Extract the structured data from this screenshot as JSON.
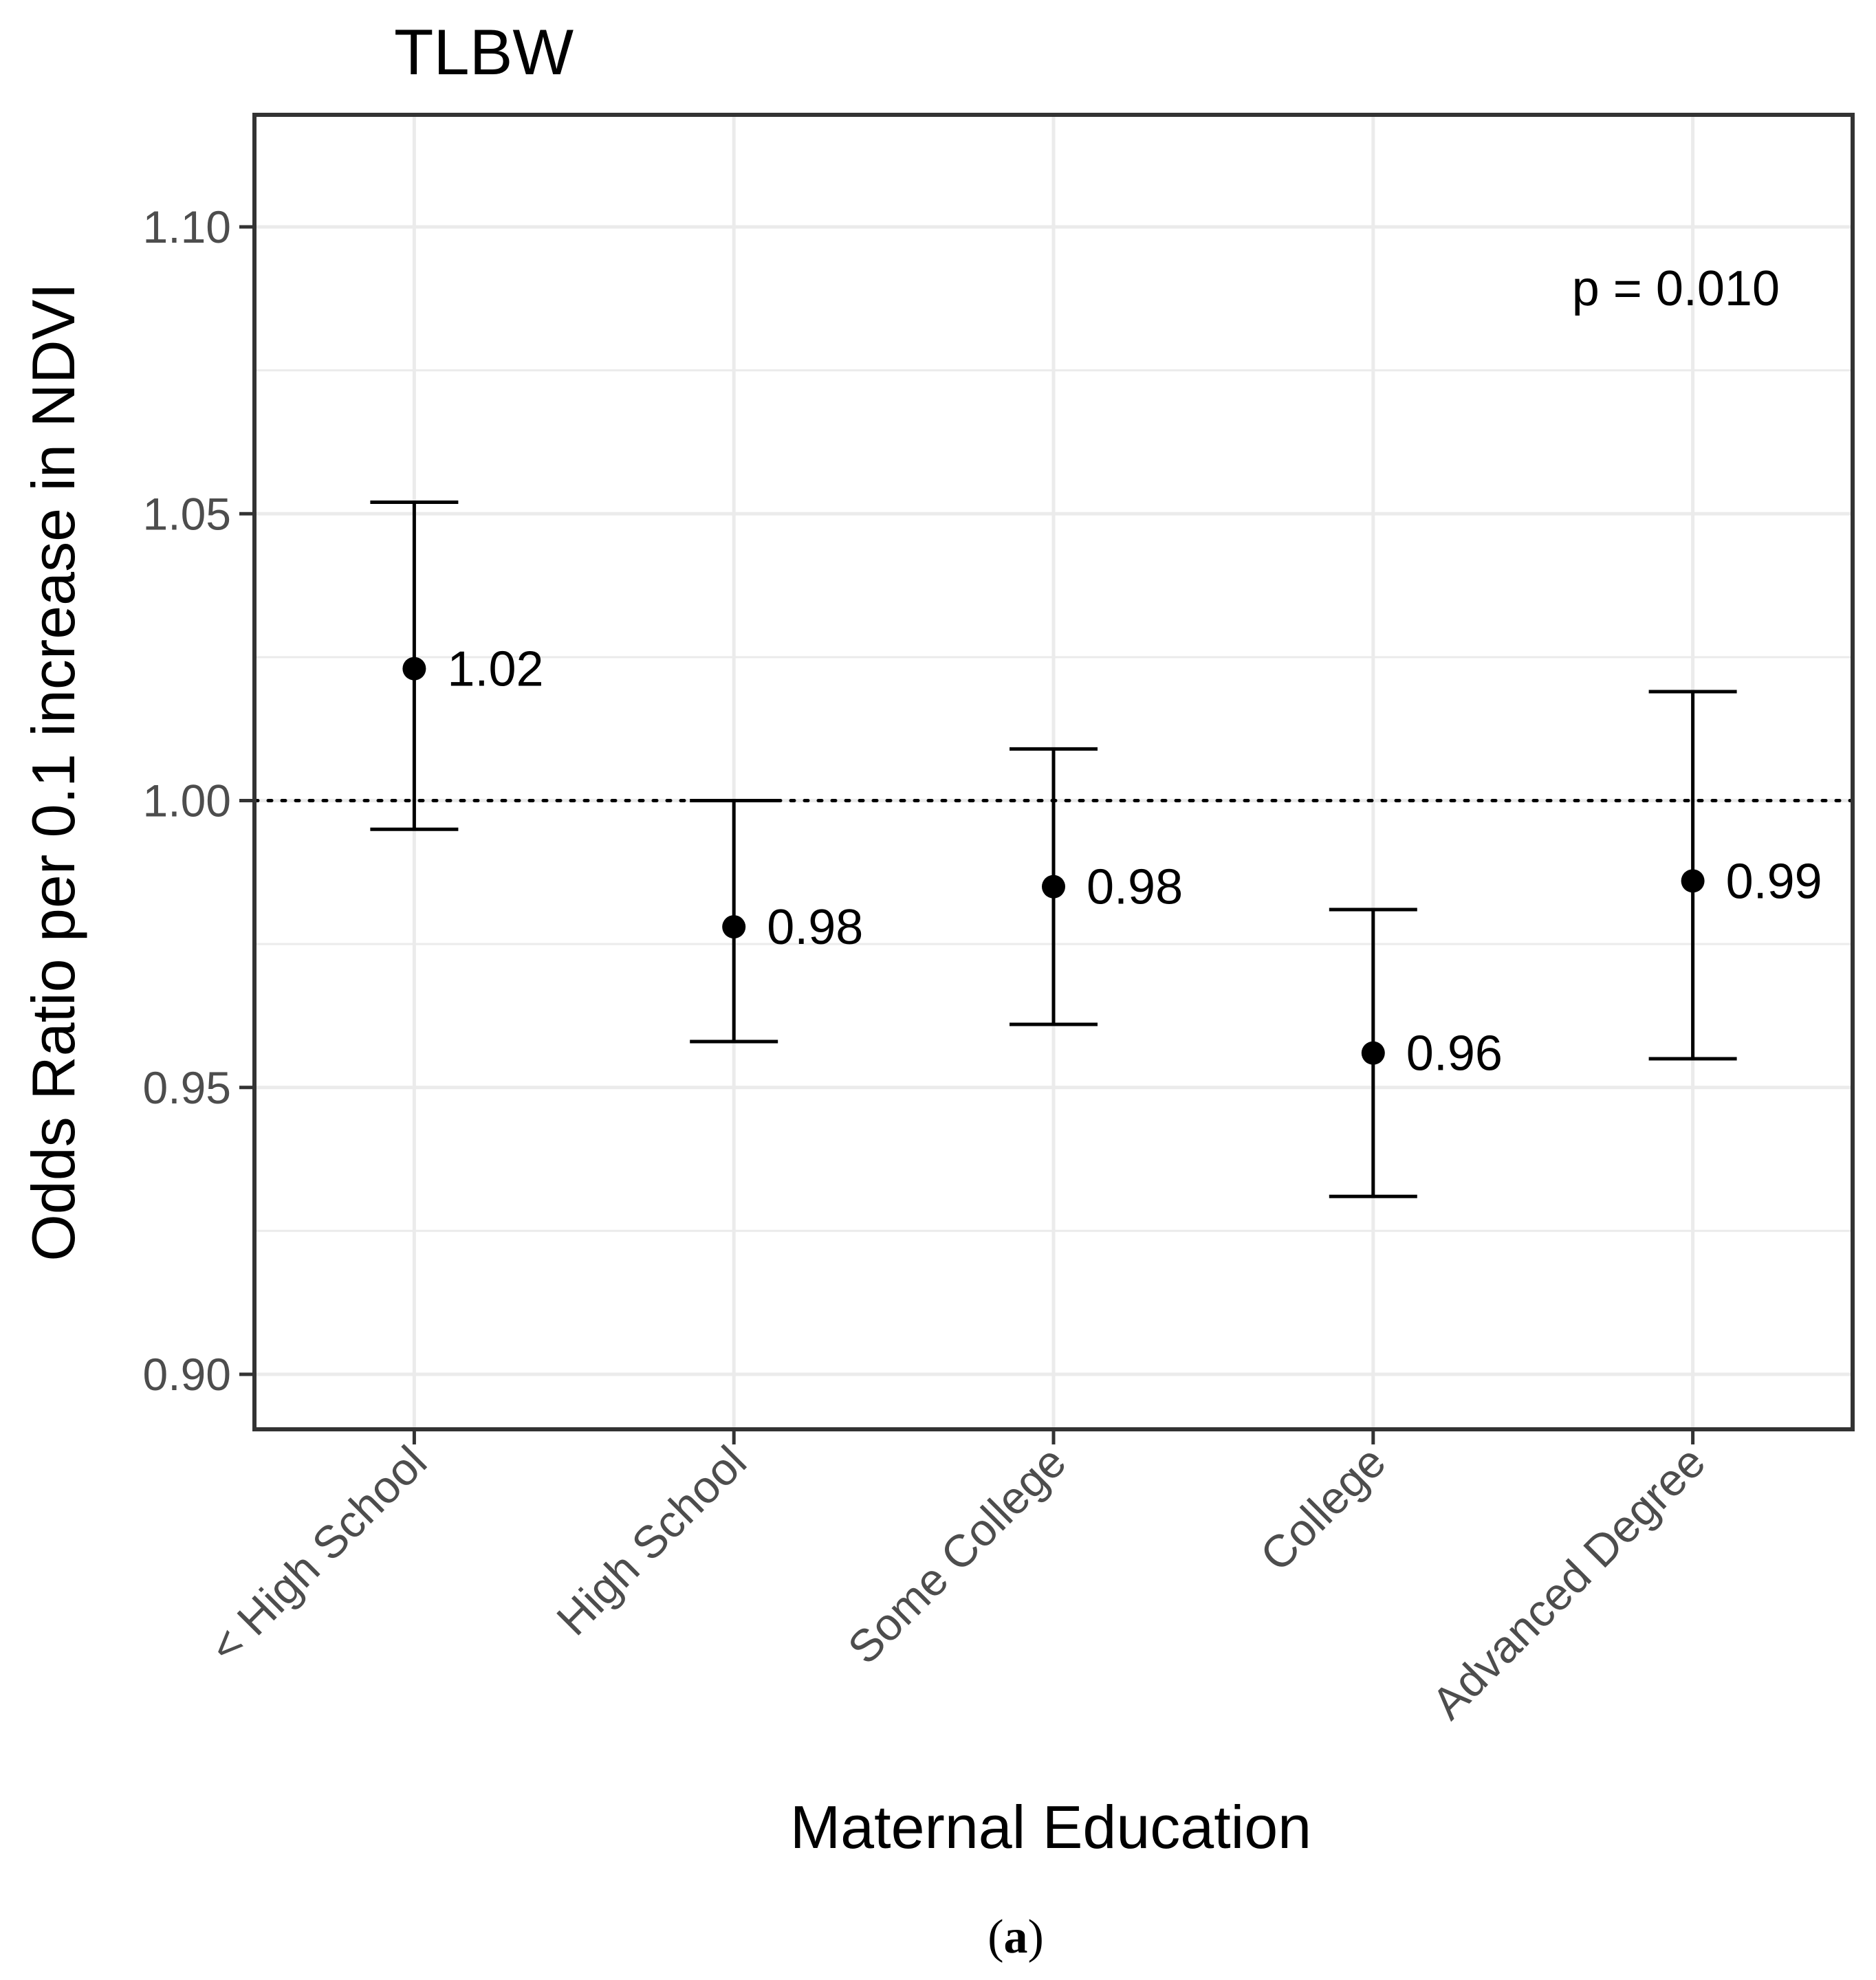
{
  "chart_data": {
    "type": "errorbar",
    "title": "TLBW",
    "xlabel": "Maternal Education",
    "ylabel": "Odds Ratio per 0.1 increase in NDVI",
    "categories": [
      "< High School",
      "High School",
      "Some College",
      "College",
      "Advanced Degree"
    ],
    "estimates": [
      1.023,
      0.978,
      0.985,
      0.956,
      0.986
    ],
    "lower": [
      0.995,
      0.958,
      0.961,
      0.931,
      0.955
    ],
    "upper": [
      1.052,
      1.0,
      1.009,
      0.981,
      1.019
    ],
    "data_labels": [
      "1.02",
      "0.98",
      "0.98",
      "0.96",
      "0.99"
    ],
    "ylim": [
      0.89,
      1.12
    ],
    "yticks": [
      0.9,
      0.95,
      1.0,
      1.05,
      1.1
    ],
    "ytick_labels": [
      "0.90",
      "0.95",
      "1.00",
      "1.05",
      "1.10"
    ],
    "reference_line": 1.0,
    "grid": true,
    "annotation": "p = 0.010",
    "annotation_position": "top-right"
  },
  "caption": {
    "open": "(",
    "letter": "a",
    "close": ")"
  },
  "colors": {
    "points": "#000000",
    "grid": "#ebebeb",
    "panel_border": "#333333",
    "tick_text": "#4d4d4d"
  }
}
